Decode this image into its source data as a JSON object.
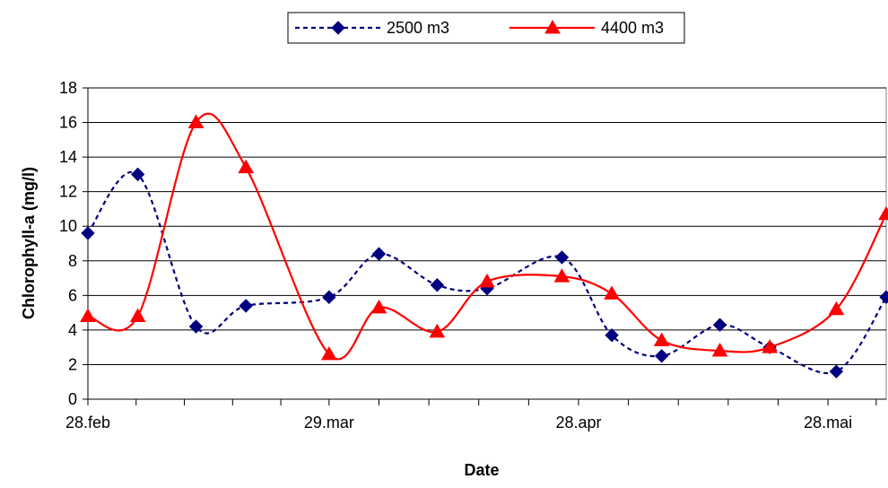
{
  "chart_data": {
    "type": "line",
    "title": "",
    "xlabel": "Date",
    "ylabel": "Chlorophyll-a (mg/l)",
    "x_tick_labels": [
      "28.feb",
      "29.mar",
      "28.apr",
      "28.mai"
    ],
    "x_tick_dates": [
      "2007-02-28",
      "2007-03-29",
      "2007-04-28",
      "2007-05-28"
    ],
    "xlim": [
      "2007-02-28",
      "2007-06-04"
    ],
    "ylim": [
      0,
      18
    ],
    "y_ticks": [
      0,
      2,
      4,
      6,
      8,
      10,
      12,
      14,
      16,
      18
    ],
    "grid": true,
    "legend_position": "top-center",
    "series": [
      {
        "name": "2500 m3",
        "color": "#000080",
        "marker": "diamond",
        "line_style": "dashed",
        "points": [
          {
            "x": "2007-02-28",
            "y": 9.6
          },
          {
            "x": "2007-03-06",
            "y": 13.0
          },
          {
            "x": "2007-03-13",
            "y": 4.2
          },
          {
            "x": "2007-03-19",
            "y": 5.4
          },
          {
            "x": "2007-03-29",
            "y": 5.9
          },
          {
            "x": "2007-04-04",
            "y": 8.4
          },
          {
            "x": "2007-04-11",
            "y": 6.6
          },
          {
            "x": "2007-04-17",
            "y": 6.4
          },
          {
            "x": "2007-04-26",
            "y": 8.2
          },
          {
            "x": "2007-05-02",
            "y": 3.7
          },
          {
            "x": "2007-05-08",
            "y": 2.5
          },
          {
            "x": "2007-05-15",
            "y": 4.3
          },
          {
            "x": "2007-05-21",
            "y": 3.0
          },
          {
            "x": "2007-05-29",
            "y": 1.6
          },
          {
            "x": "2007-06-04",
            "y": 5.9
          }
        ]
      },
      {
        "name": "4400 m3",
        "color": "#ff0000",
        "marker": "triangle",
        "line_style": "solid",
        "points": [
          {
            "x": "2007-02-28",
            "y": 4.8
          },
          {
            "x": "2007-03-06",
            "y": 4.8
          },
          {
            "x": "2007-03-13",
            "y": 16.0
          },
          {
            "x": "2007-03-19",
            "y": 13.4
          },
          {
            "x": "2007-03-29",
            "y": 2.6
          },
          {
            "x": "2007-04-04",
            "y": 5.3
          },
          {
            "x": "2007-04-11",
            "y": 3.9
          },
          {
            "x": "2007-04-17",
            "y": 6.8
          },
          {
            "x": "2007-04-26",
            "y": 7.1
          },
          {
            "x": "2007-05-02",
            "y": 6.1
          },
          {
            "x": "2007-05-08",
            "y": 3.4
          },
          {
            "x": "2007-05-15",
            "y": 2.8
          },
          {
            "x": "2007-05-21",
            "y": 3.0
          },
          {
            "x": "2007-05-29",
            "y": 5.2
          },
          {
            "x": "2007-06-04",
            "y": 10.7
          }
        ]
      }
    ]
  }
}
